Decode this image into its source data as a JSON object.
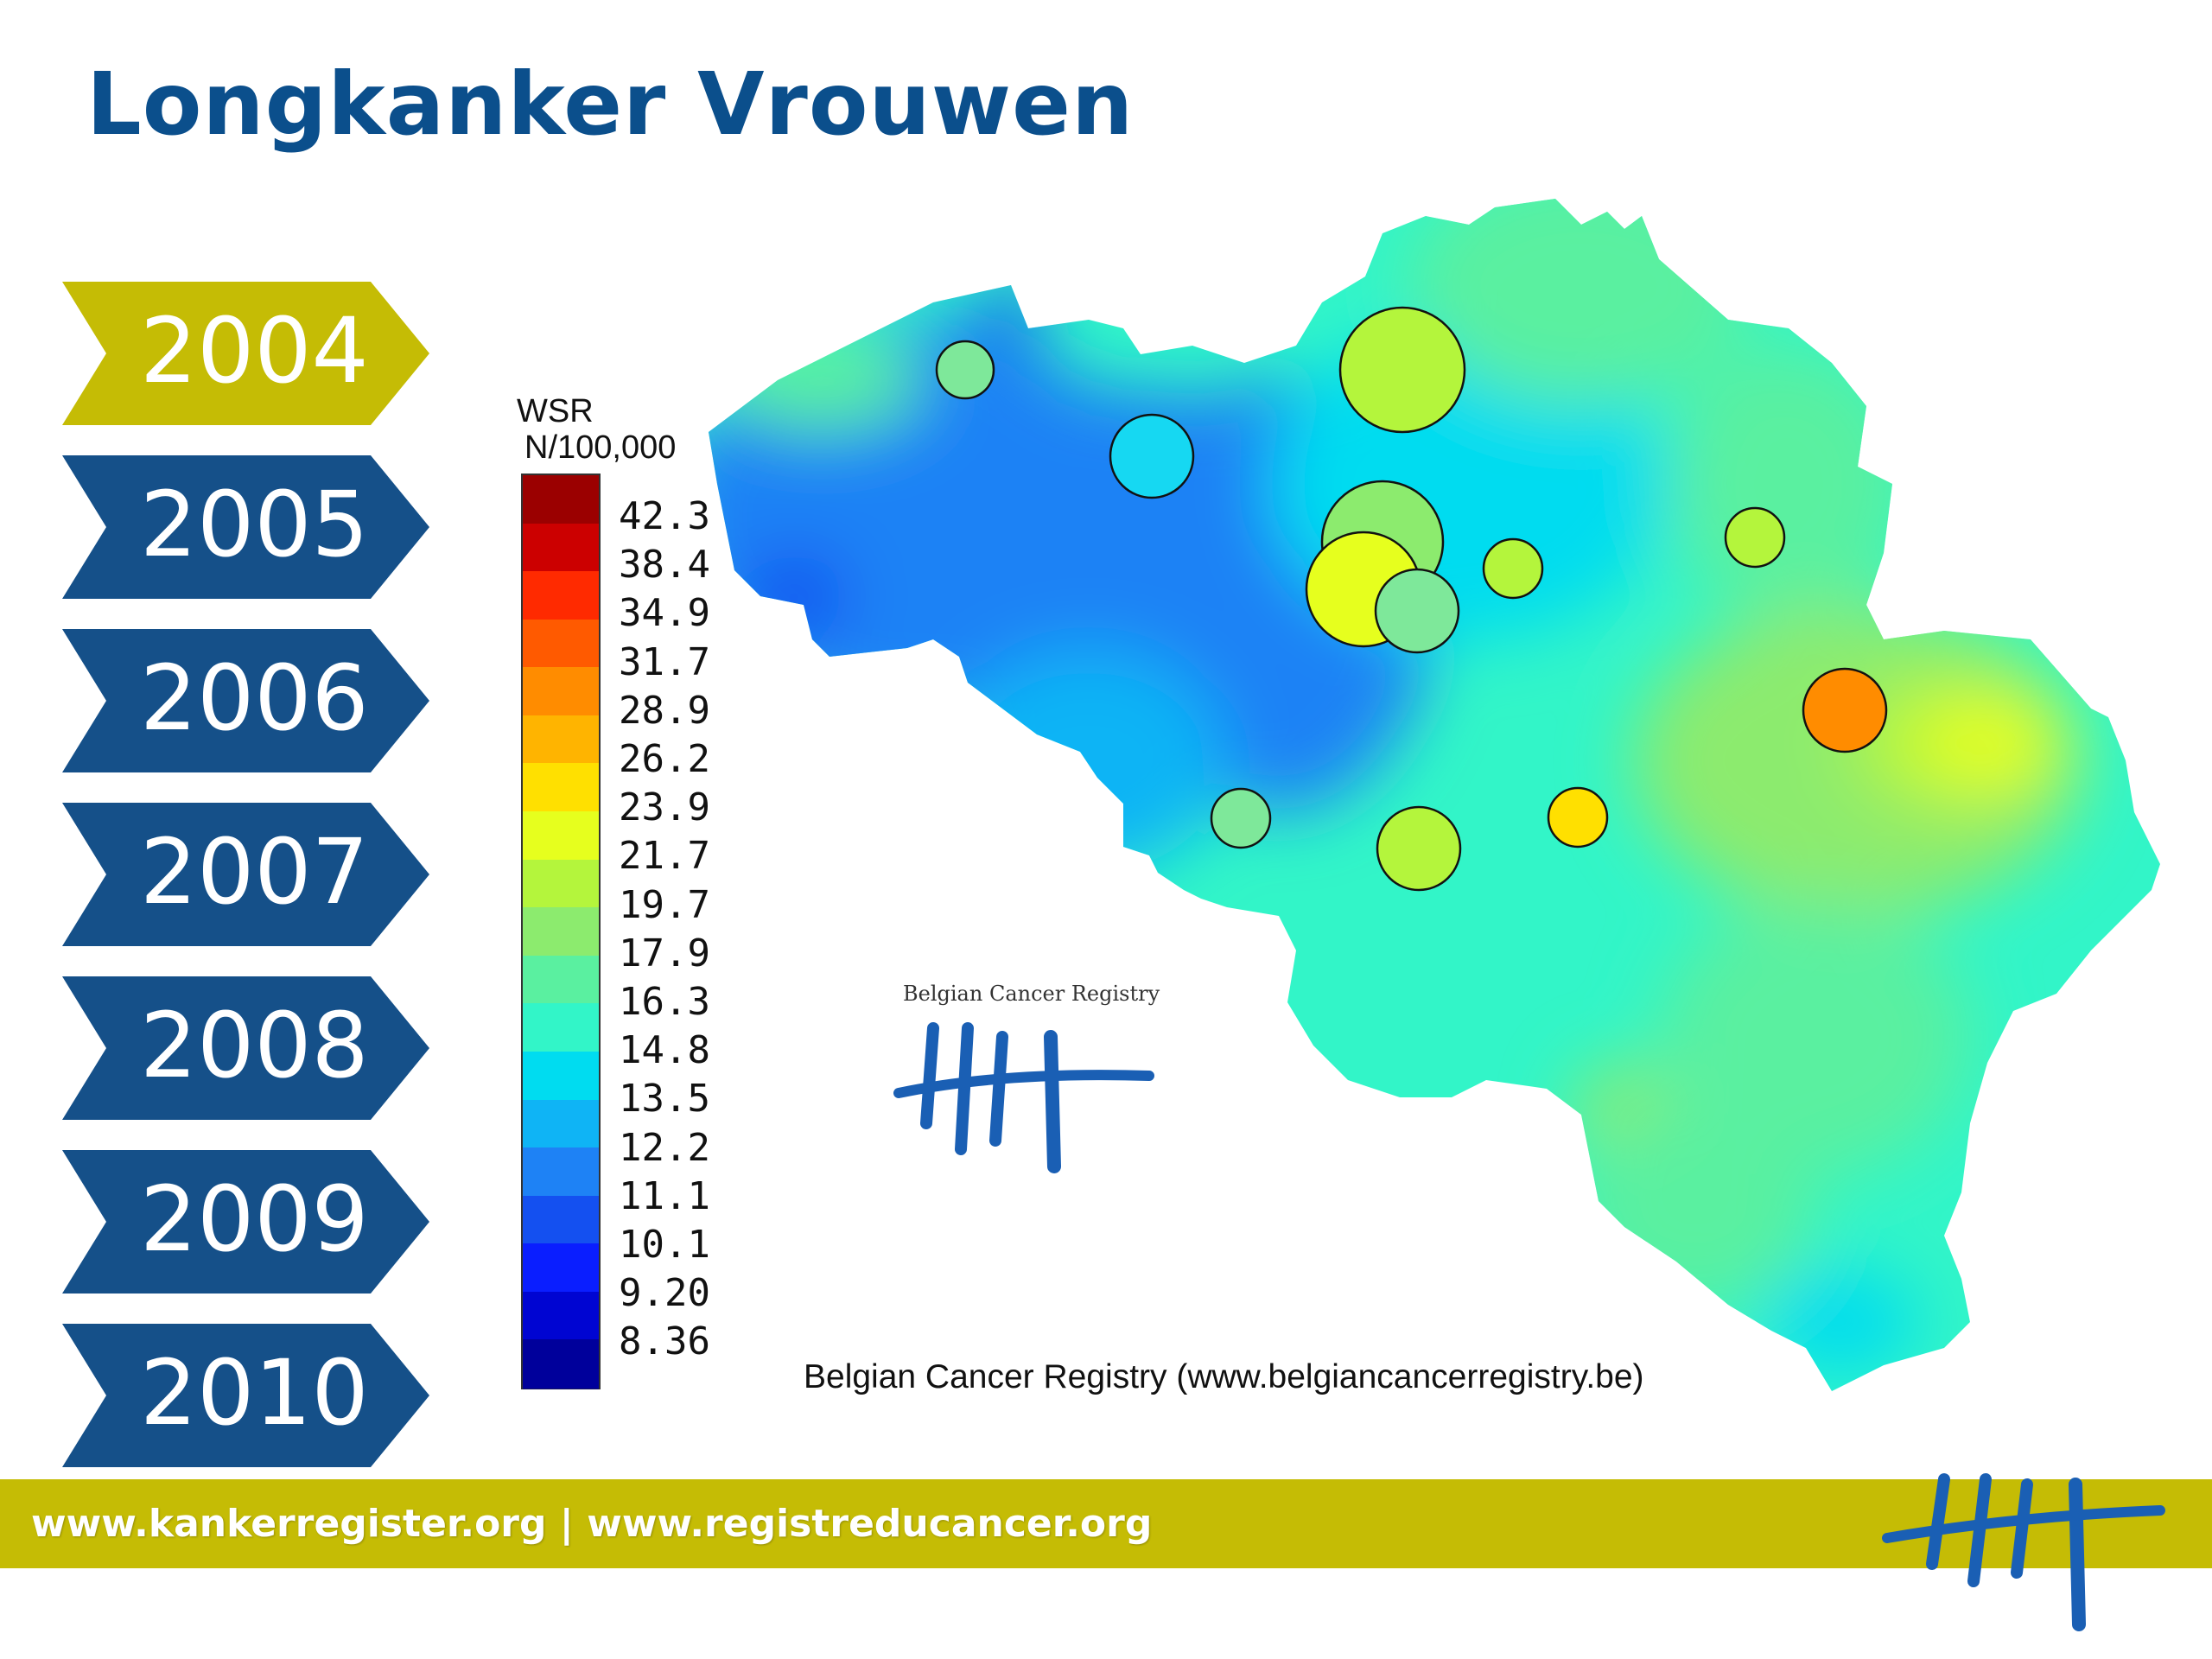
{
  "title": "Longkanker Vrouwen",
  "years": [
    {
      "label": "2004",
      "active": true
    },
    {
      "label": "2005",
      "active": false
    },
    {
      "label": "2006",
      "active": false
    },
    {
      "label": "2007",
      "active": false
    },
    {
      "label": "2008",
      "active": false
    },
    {
      "label": "2009",
      "active": false
    },
    {
      "label": "2010",
      "active": false
    }
  ],
  "legend": {
    "title_line1": "WSR",
    "title_line2": "N/100,000",
    "ticks": [
      "42.3",
      "38.4",
      "34.9",
      "31.7",
      "28.9",
      "26.2",
      "23.9",
      "21.7",
      "19.7",
      "17.9",
      "16.3",
      "14.8",
      "13.5",
      "12.2",
      "11.1",
      "10.1",
      "9.20",
      "8.36"
    ],
    "colors": [
      "#9b0000",
      "#cc0000",
      "#ff2a00",
      "#ff5a00",
      "#ff8c00",
      "#ffb400",
      "#ffe000",
      "#e6ff1e",
      "#b4f53c",
      "#8ceb6e",
      "#5af0a0",
      "#32f5c8",
      "#00dcf0",
      "#0fb4f5",
      "#1e82f5",
      "#1450f0",
      "#0a1eff",
      "#0005d2",
      "#00009b"
    ]
  },
  "colors": {
    "title": "#0b4f8c",
    "tab_inactive": "#155089",
    "tab_active": "#c5bc05",
    "footer": "#c5bc05"
  },
  "map": {
    "circles": [
      {
        "rate": 17.9,
        "color": "#7ee89a"
      },
      {
        "rate": 13.5,
        "color": "#16d8f2"
      },
      {
        "rate": 20.5,
        "color": "#b4f53c"
      },
      {
        "rate": 17.9,
        "color": "#8ceb6e"
      },
      {
        "rate": 23.0,
        "color": "#e6ff1e"
      },
      {
        "rate": 17.9,
        "color": "#7ee89a"
      },
      {
        "rate": 20.0,
        "color": "#b4f53c"
      },
      {
        "rate": 20.0,
        "color": "#b4f53c"
      },
      {
        "rate": 30.0,
        "color": "#ff8c00"
      },
      {
        "rate": 17.0,
        "color": "#7ee89a"
      },
      {
        "rate": 20.0,
        "color": "#b4f53c"
      },
      {
        "rate": 24.5,
        "color": "#ffe000"
      }
    ]
  },
  "logo_small_text": "Belgian Cancer Registry",
  "credit": "Belgian Cancer Registry (www.belgiancancerregistry.be)",
  "footer_text": "www.kankerregister.org | www.registreducancer.org"
}
